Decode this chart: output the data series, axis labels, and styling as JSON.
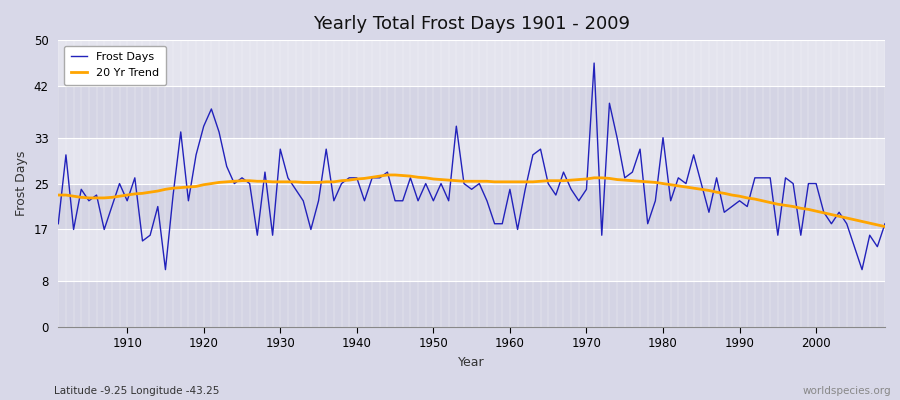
{
  "title": "Yearly Total Frost Days 1901 - 2009",
  "xlabel": "Year",
  "ylabel": "Frost Days",
  "subtitle": "Latitude -9.25 Longitude -43.25",
  "watermark": "worldspecies.org",
  "ylim": [
    0,
    50
  ],
  "xlim": [
    1901,
    2009
  ],
  "yticks": [
    0,
    8,
    17,
    25,
    33,
    42,
    50
  ],
  "xticks": [
    1910,
    1920,
    1930,
    1940,
    1950,
    1960,
    1970,
    1980,
    1990,
    2000
  ],
  "fig_bg_color": "#d8d8e8",
  "plot_bg_color": "#dcdce8",
  "band_color_light": "#e4e4ee",
  "band_color_dark": "#d4d4e4",
  "frost_days_color": "#2222bb",
  "trend_color": "#ffa500",
  "years": [
    1901,
    1902,
    1903,
    1904,
    1905,
    1906,
    1907,
    1908,
    1909,
    1910,
    1911,
    1912,
    1913,
    1914,
    1915,
    1916,
    1917,
    1918,
    1919,
    1920,
    1921,
    1922,
    1923,
    1924,
    1925,
    1926,
    1927,
    1928,
    1929,
    1930,
    1931,
    1932,
    1933,
    1934,
    1935,
    1936,
    1937,
    1938,
    1939,
    1940,
    1941,
    1942,
    1943,
    1944,
    1945,
    1946,
    1947,
    1948,
    1949,
    1950,
    1951,
    1952,
    1953,
    1954,
    1955,
    1956,
    1957,
    1958,
    1959,
    1960,
    1961,
    1962,
    1963,
    1964,
    1965,
    1966,
    1967,
    1968,
    1969,
    1970,
    1971,
    1972,
    1973,
    1974,
    1975,
    1976,
    1977,
    1978,
    1979,
    1980,
    1981,
    1982,
    1983,
    1984,
    1985,
    1986,
    1987,
    1988,
    1989,
    1990,
    1991,
    1992,
    1993,
    1994,
    1995,
    1996,
    1997,
    1998,
    1999,
    2000,
    2001,
    2002,
    2003,
    2004,
    2005,
    2006,
    2007,
    2008,
    2009
  ],
  "frost_days": [
    18,
    30,
    17,
    24,
    22,
    23,
    17,
    21,
    25,
    22,
    26,
    15,
    16,
    21,
    10,
    23,
    34,
    22,
    30,
    35,
    38,
    34,
    28,
    25,
    26,
    25,
    16,
    27,
    16,
    31,
    26,
    24,
    22,
    17,
    22,
    31,
    22,
    25,
    26,
    26,
    22,
    26,
    26,
    27,
    22,
    22,
    26,
    22,
    25,
    22,
    25,
    22,
    35,
    25,
    24,
    25,
    22,
    18,
    18,
    24,
    17,
    24,
    30,
    31,
    25,
    23,
    27,
    24,
    22,
    24,
    46,
    16,
    39,
    33,
    26,
    27,
    31,
    18,
    22,
    33,
    22,
    26,
    25,
    30,
    25,
    20,
    26,
    20,
    21,
    22,
    21,
    26,
    26,
    26,
    16,
    26,
    25,
    16,
    25,
    25,
    20,
    18,
    20,
    18,
    14,
    10,
    16,
    14,
    18
  ],
  "trend_start_year": 1901,
  "trend_values_by_year": {
    "1901": 23.0,
    "1902": 23.0,
    "1903": 22.8,
    "1904": 22.6,
    "1905": 22.5,
    "1906": 22.5,
    "1907": 22.5,
    "1908": 22.6,
    "1909": 22.8,
    "1910": 23.0,
    "1911": 23.2,
    "1912": 23.3,
    "1913": 23.5,
    "1914": 23.7,
    "1915": 24.0,
    "1916": 24.2,
    "1917": 24.3,
    "1918": 24.4,
    "1919": 24.5,
    "1920": 24.8,
    "1921": 25.0,
    "1922": 25.2,
    "1923": 25.3,
    "1924": 25.4,
    "1925": 25.5,
    "1926": 25.5,
    "1927": 25.4,
    "1928": 25.4,
    "1929": 25.3,
    "1930": 25.3,
    "1931": 25.3,
    "1932": 25.3,
    "1933": 25.2,
    "1934": 25.2,
    "1935": 25.2,
    "1936": 25.3,
    "1937": 25.3,
    "1938": 25.5,
    "1939": 25.6,
    "1940": 25.8,
    "1941": 25.9,
    "1942": 26.1,
    "1943": 26.3,
    "1944": 26.5,
    "1945": 26.5,
    "1946": 26.4,
    "1947": 26.3,
    "1948": 26.1,
    "1949": 26.0,
    "1950": 25.8,
    "1951": 25.7,
    "1952": 25.6,
    "1953": 25.5,
    "1954": 25.4,
    "1955": 25.4,
    "1956": 25.4,
    "1957": 25.4,
    "1958": 25.3,
    "1959": 25.3,
    "1960": 25.3,
    "1961": 25.3,
    "1962": 25.3,
    "1963": 25.3,
    "1964": 25.4,
    "1965": 25.5,
    "1966": 25.5,
    "1967": 25.5,
    "1968": 25.6,
    "1969": 25.7,
    "1970": 25.8,
    "1971": 26.0,
    "1972": 26.0,
    "1973": 25.9,
    "1974": 25.7,
    "1975": 25.6,
    "1976": 25.5,
    "1977": 25.4,
    "1978": 25.3,
    "1979": 25.2,
    "1980": 25.0,
    "1981": 24.8,
    "1982": 24.6,
    "1983": 24.4,
    "1984": 24.2,
    "1985": 24.0,
    "1986": 23.8,
    "1987": 23.5,
    "1988": 23.3,
    "1989": 23.0,
    "1990": 22.8,
    "1991": 22.5,
    "1992": 22.3,
    "1993": 22.0,
    "1994": 21.7,
    "1995": 21.4,
    "1996": 21.2,
    "1997": 21.0,
    "1998": 20.7,
    "1999": 20.5,
    "2000": 20.2,
    "2001": 19.9,
    "2002": 19.6,
    "2003": 19.3,
    "2004": 19.0,
    "2005": 18.7,
    "2006": 18.4,
    "2007": 18.1,
    "2008": 17.8,
    "2009": 17.5
  }
}
